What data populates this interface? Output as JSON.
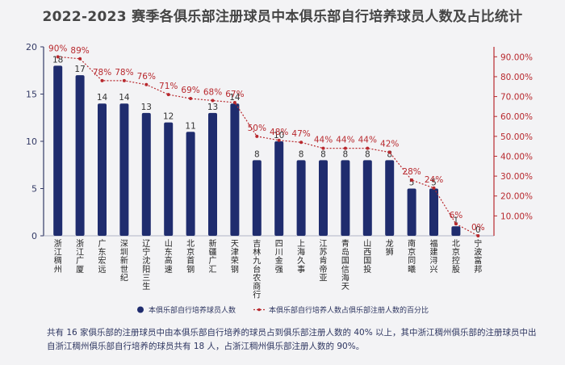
{
  "title": "2022-2023 赛季各俱乐部注册球员中本俱乐部自行培养球员人数及占比统计",
  "colors": {
    "bar": "#1f2c6e",
    "line": "#b8292e",
    "axis": "#333a66",
    "background": "#f3f3f5"
  },
  "legend": {
    "bar": "本俱乐部自行培养球员人数",
    "line": "本俱乐部自行培养人数占俱乐部注册人数的百分比"
  },
  "footnote": "共有 16 家俱乐部的注册球员中由本俱乐部自行培养的球员占到俱乐部注册人数的 40% 以上，其中浙江稠州俱乐部的注册球员中出自浙江稠州俱乐部自行培养的球员共有 18 人，占浙江稠州俱乐部注册人数的 90%。",
  "chart_data": {
    "type": "bar",
    "title": "2022-2023 赛季各俱乐部注册球员中本俱乐部自行培养球员人数及占比统计",
    "categories": [
      "浙江稠州",
      "浙江广厦",
      "广东宏远",
      "深圳新世纪",
      "辽宁沈阳三生",
      "山东高速",
      "北京首钢",
      "新疆广汇",
      "天津荣钢",
      "吉林九台农商行",
      "四川金强",
      "上海久事",
      "江苏肯帝亚",
      "青岛国信海天",
      "山西国投",
      "龙狮",
      "南京同曦",
      "福建浔兴",
      "北京控股",
      "宁波富邦"
    ],
    "series": [
      {
        "name": "本俱乐部自行培养球员人数",
        "type": "bar",
        "axis": "left",
        "values": [
          18,
          17,
          14,
          14,
          13,
          12,
          11,
          13,
          14,
          8,
          10,
          8,
          8,
          8,
          8,
          8,
          5,
          5,
          1,
          0
        ]
      },
      {
        "name": "本俱乐部自行培养人数占俱乐部注册人数的百分比",
        "type": "line",
        "axis": "right",
        "values": [
          90,
          89,
          78,
          78,
          76,
          71,
          69,
          68,
          67,
          50,
          48,
          47,
          44,
          44,
          44,
          42,
          28,
          24,
          6,
          0
        ],
        "labels": [
          "90%",
          "89%",
          "78%",
          "78%",
          "76%",
          "71%",
          "69%",
          "68%",
          "67%",
          "50%",
          "48%",
          "47%",
          "44%",
          "44%",
          "44%",
          "42%",
          "28%",
          "24%",
          "6%",
          "0%"
        ]
      }
    ],
    "y_left": {
      "ylim": [
        0,
        20
      ],
      "ticks": [
        0,
        5,
        10,
        15,
        20
      ],
      "tick_labels": [
        "0",
        "5",
        "10",
        "15",
        "20"
      ]
    },
    "y_right": {
      "ylim": [
        0,
        95
      ],
      "ticks": [
        10,
        20,
        30,
        40,
        50,
        60,
        70,
        80,
        90
      ],
      "tick_labels": [
        "10.00%",
        "20.00%",
        "30.00%",
        "40.00%",
        "50.00%",
        "60.00%",
        "70.00%",
        "80.00%",
        "90.00%"
      ]
    },
    "legend_position": "bottom"
  }
}
